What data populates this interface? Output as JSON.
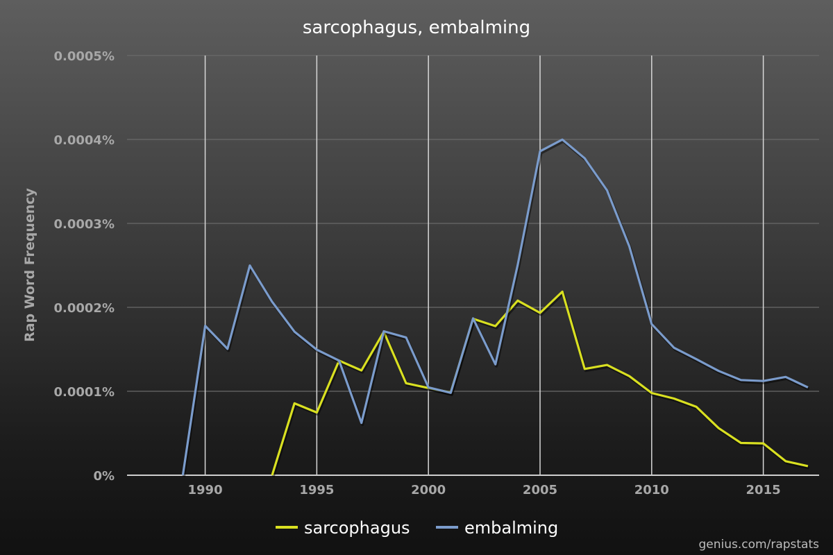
{
  "chart_data": {
    "type": "line",
    "title": "sarcophagus, embalming",
    "ylabel": "Rap Word Frequency",
    "xlabel": "",
    "xlim": [
      1986.5,
      2017.5
    ],
    "ylim": [
      0,
      0.0005
    ],
    "x_ticks": [
      1990,
      1995,
      2000,
      2005,
      2010,
      2015
    ],
    "x_tick_labels": [
      "1990",
      "1995",
      "2000",
      "2005",
      "2010",
      "2015"
    ],
    "y_ticks": [
      0,
      0.0001,
      0.0002,
      0.0003,
      0.0004,
      0.0005
    ],
    "y_tick_labels": [
      "0%",
      "0.0001%",
      "0.0002%",
      "0.0003%",
      "0.0004%",
      "0.0005%"
    ],
    "grid": {
      "vertical": true,
      "horizontal": true
    },
    "legend_position": "bottom-center",
    "series": [
      {
        "name": "sarcophagus",
        "color": "#d9e021",
        "x": [
          1993,
          1994,
          1995,
          1996,
          1997,
          1998,
          1999,
          2000,
          2001,
          2002,
          2003,
          2004,
          2005,
          2006,
          2007,
          2008,
          2009,
          2010,
          2011,
          2012,
          2013,
          2014,
          2015,
          2016,
          2017
        ],
        "y": [
          0,
          8.56e-05,
          7.47e-05,
          0.0001365,
          0.0001248,
          0.0001708,
          0.0001096,
          0.0001039,
          9.85e-05,
          0.0001864,
          0.0001776,
          0.000208,
          0.0001934,
          0.0002187,
          0.0001266,
          0.0001313,
          0.000118,
          9.79e-05,
          9.13e-05,
          8.15e-05,
          5.6e-05,
          3.84e-05,
          3.79e-05,
          1.67e-05,
          1.08e-05
        ]
      },
      {
        "name": "embalming",
        "color": "#7b9ccc",
        "x": [
          1989,
          1990,
          1991,
          1992,
          1993,
          1994,
          1995,
          1996,
          1997,
          1998,
          1999,
          2000,
          2001,
          2002,
          2003,
          2004,
          2005,
          2006,
          2007,
          2008,
          2009,
          2010,
          2011,
          2012,
          2013,
          2014,
          2015,
          2016,
          2017
        ],
        "y": [
          0,
          0.000178,
          0.0001505,
          0.0002498,
          0.0002066,
          0.000171,
          0.0001495,
          0.0001365,
          6.23e-05,
          0.0001715,
          0.0001641,
          0.0001046,
          9.81e-05,
          0.0001869,
          0.0001321,
          0.0002505,
          0.0003859,
          0.0003998,
          0.0003775,
          0.0003393,
          0.0002726,
          0.00018,
          0.0001518,
          0.0001383,
          0.0001242,
          0.0001134,
          0.0001122,
          0.0001171,
          0.0001046
        ]
      }
    ]
  },
  "footer": {
    "credit": "genius.com/rapstats"
  }
}
